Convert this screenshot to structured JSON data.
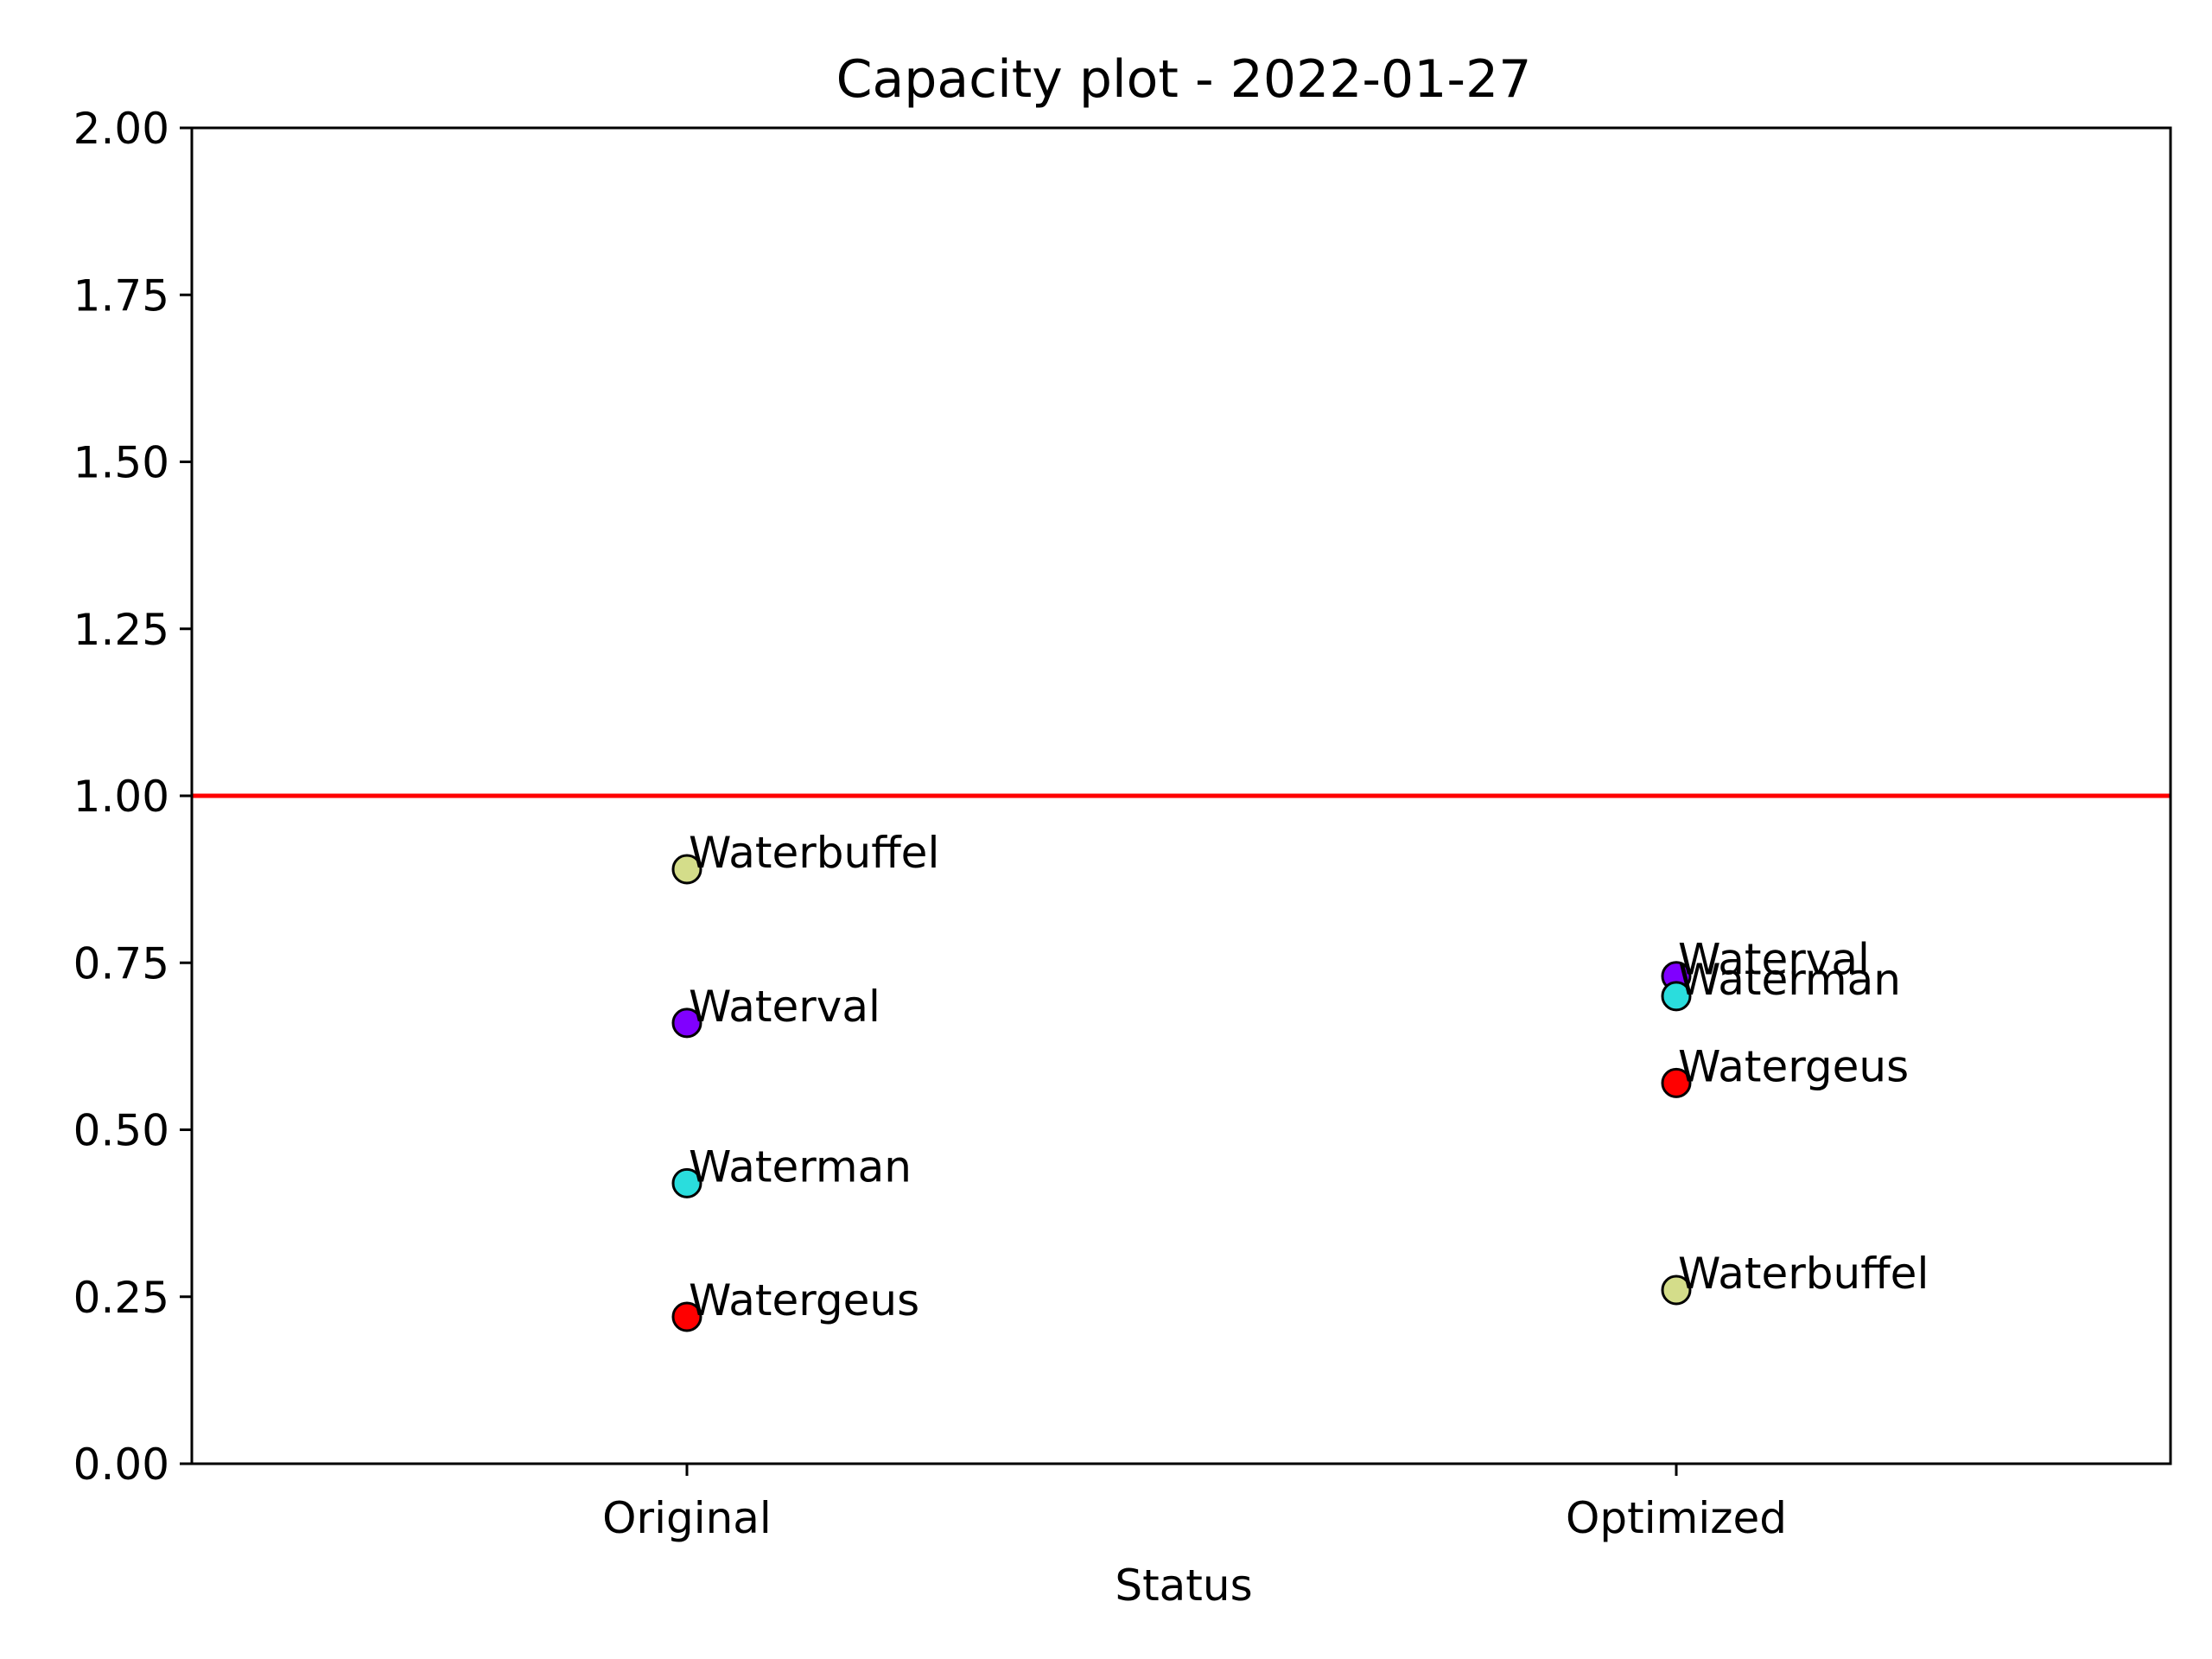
{
  "chart_data": {
    "type": "scatter",
    "title": "Capacity plot - 2022-01-27",
    "xlabel": "Status",
    "ylabel": "",
    "categories": [
      "Original",
      "Optimized"
    ],
    "ylim": [
      0,
      2
    ],
    "yticks": [
      "0.00",
      "0.25",
      "0.50",
      "0.75",
      "1.00",
      "1.25",
      "1.50",
      "1.75",
      "2.00"
    ],
    "grid": false,
    "reference_line": {
      "y": 1.0,
      "color": "#ff0000"
    },
    "points": [
      {
        "label": "Waterbuffel",
        "category": "Original",
        "y": 0.89,
        "color": "#d4dd8a"
      },
      {
        "label": "Waterval",
        "category": "Original",
        "y": 0.66,
        "color": "#8000ff"
      },
      {
        "label": "Waterman",
        "category": "Original",
        "y": 0.42,
        "color": "#2adddd"
      },
      {
        "label": "Watergeus",
        "category": "Original",
        "y": 0.22,
        "color": "#ff0000"
      },
      {
        "label": "Waterval",
        "category": "Optimized",
        "y": 0.73,
        "color": "#8000ff"
      },
      {
        "label": "Waterman",
        "category": "Optimized",
        "y": 0.7,
        "color": "#2adddd"
      },
      {
        "label": "Watergeus",
        "category": "Optimized",
        "y": 0.57,
        "color": "#ff0000"
      },
      {
        "label": "Waterbuffel",
        "category": "Optimized",
        "y": 0.26,
        "color": "#d4dd8a"
      }
    ]
  }
}
